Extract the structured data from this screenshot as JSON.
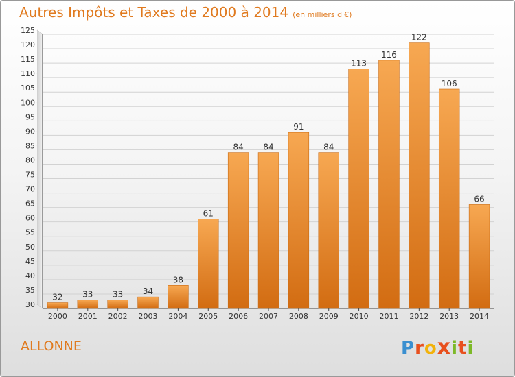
{
  "header": {
    "title": "Autres Impôts et Taxes de 2000 à 2014",
    "subtitle": "(en milliers d'€)"
  },
  "footer": {
    "commune": "ALLONNE",
    "logo_letters": [
      "P",
      "r",
      "o",
      "x",
      "i",
      "t",
      "i"
    ]
  },
  "colors": {
    "bar_light": "#f6a24a",
    "bar_dark": "#d46e14",
    "accent": "#e07a1f"
  },
  "chart_data": {
    "type": "bar",
    "title": "Autres Impôts et Taxes de 2000 à 2014",
    "subtitle": "(en milliers d'€)",
    "xlabel": "",
    "ylabel": "",
    "categories": [
      "2000",
      "2001",
      "2002",
      "2003",
      "2004",
      "2005",
      "2006",
      "2007",
      "2008",
      "2009",
      "2010",
      "2011",
      "2012",
      "2013",
      "2014"
    ],
    "values": [
      32,
      33,
      33,
      34,
      38,
      61,
      84,
      84,
      91,
      84,
      113,
      116,
      122,
      106,
      66
    ],
    "ylim": [
      30,
      125
    ],
    "yticks": [
      30,
      35,
      40,
      45,
      50,
      55,
      60,
      65,
      70,
      75,
      80,
      85,
      90,
      95,
      100,
      105,
      110,
      115,
      120,
      125
    ],
    "grid": true,
    "legend": "none"
  }
}
